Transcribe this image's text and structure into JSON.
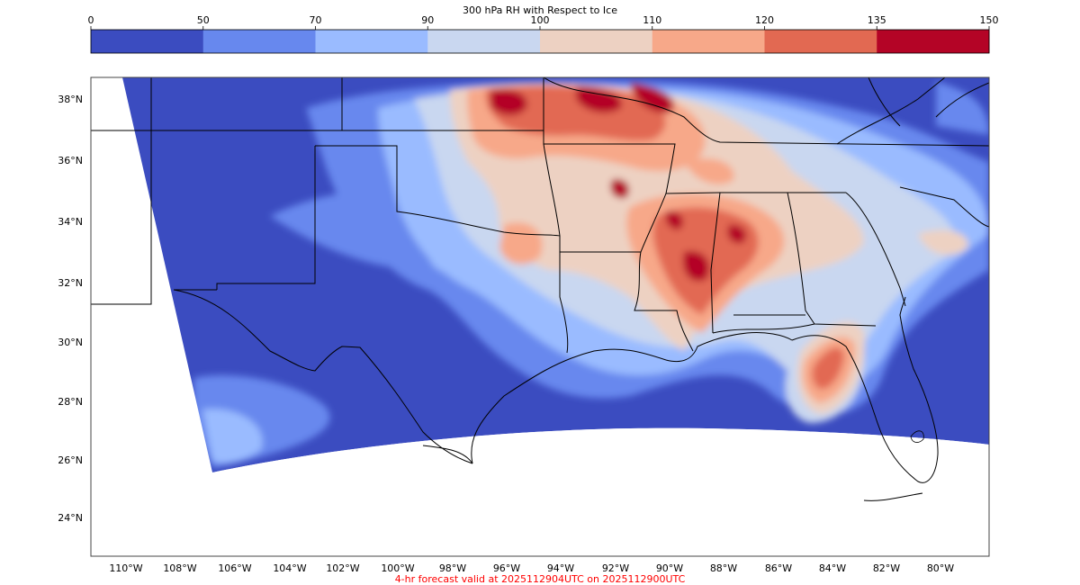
{
  "colorbar": {
    "title": "300 hPa RH with Respect to Ice",
    "levels": [
      0,
      50,
      70,
      90,
      100,
      110,
      120,
      135,
      150
    ],
    "tick_labels": [
      "0",
      "50",
      "70",
      "90",
      "100",
      "110",
      "120",
      "135",
      "150"
    ],
    "colors": [
      "#3b4cc0",
      "#6788ee",
      "#9abbff",
      "#c9d7f0",
      "#edd1c2",
      "#f7a889",
      "#e26952",
      "#b40426"
    ]
  },
  "map": {
    "lat_labels": [
      "38°N",
      "36°N",
      "34°N",
      "32°N",
      "30°N",
      "28°N",
      "26°N",
      "24°N"
    ],
    "lon_labels": [
      "110°W",
      "108°W",
      "106°W",
      "104°W",
      "102°W",
      "100°W",
      "98°W",
      "96°W",
      "94°W",
      "92°W",
      "90°W",
      "88°W",
      "86°W",
      "84°W",
      "82°W",
      "80°W"
    ],
    "outside_domain_color": "#ffffff",
    "border_color": "#000000"
  },
  "footer": {
    "text": "4-hr forecast valid at 2025112904UTC on 2025112900UTC",
    "color": "#ff0000"
  }
}
